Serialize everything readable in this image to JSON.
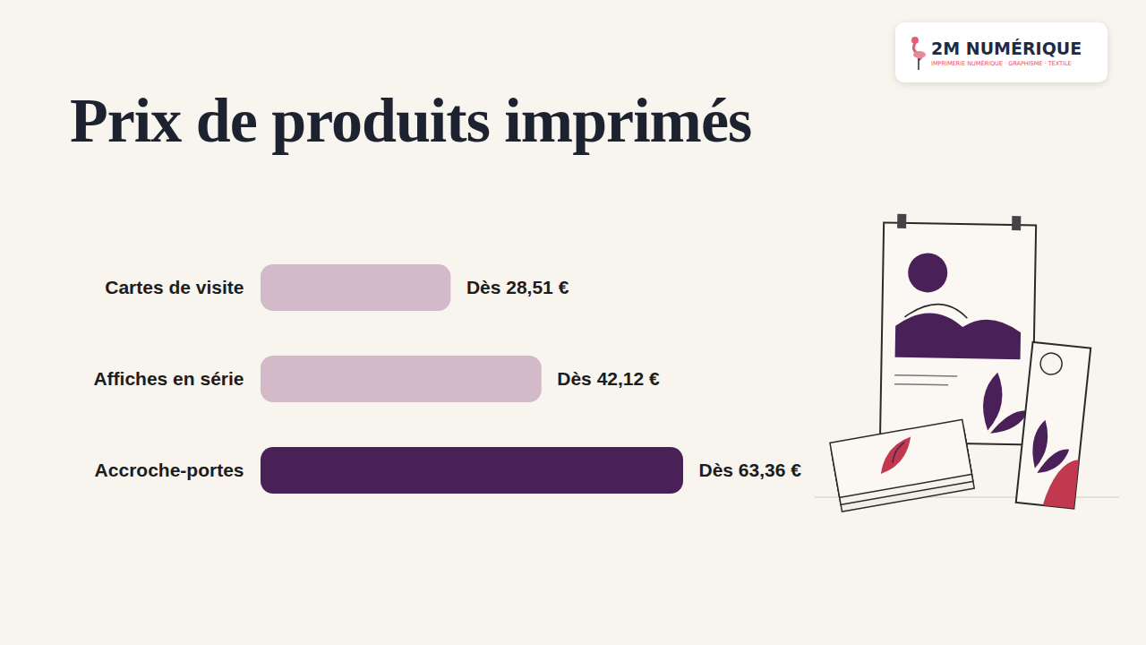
{
  "logo": {
    "name": "2M NUMÉRIQUE",
    "tagline": "IMPRIMERIE NUMÉRIQUE · GRAPHISME · TEXTILE"
  },
  "chart_data": {
    "type": "bar",
    "title": "Prix de produits imprimés",
    "orientation": "horizontal",
    "categories": [
      "Cartes de visite",
      "Affiches en série",
      "Accroche-portes"
    ],
    "values": [
      28.51,
      42.12,
      63.36
    ],
    "value_labels": [
      "Dès 28,51 €",
      "Dès 42,12 €",
      "Dès 63,36 €"
    ],
    "data_labels": true,
    "colors": [
      "#d2bac9",
      "#d2bac9",
      "#4a2058"
    ],
    "xlim": [
      0,
      63.36
    ],
    "tick_labels": "y",
    "grid": false
  }
}
